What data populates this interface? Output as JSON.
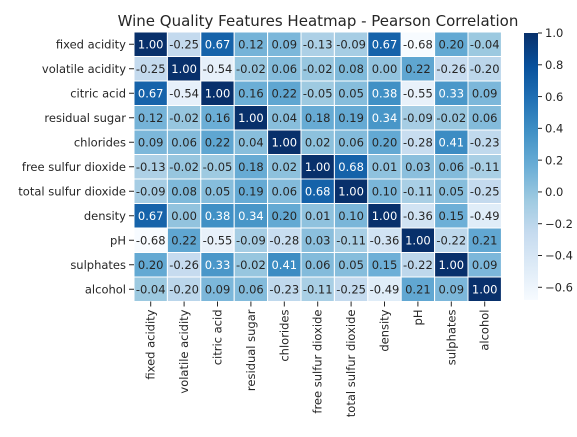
{
  "chart_data": {
    "type": "heatmap",
    "title": "Wine Quality Features Heatmap - Pearson Correlation",
    "rows": [
      "fixed acidity",
      "volatile acidity",
      "citric acid",
      "residual sugar",
      "chlorides",
      "free sulfur dioxide",
      "total sulfur dioxide",
      "density",
      "pH",
      "sulphates",
      "alcohol"
    ],
    "columns": [
      "fixed acidity",
      "volatile acidity",
      "citric acid",
      "residual sugar",
      "chlorides",
      "free sulfur dioxide",
      "total sulfur dioxide",
      "density",
      "pH",
      "sulphates",
      "alcohol"
    ],
    "values": [
      [
        1.0,
        -0.25,
        0.67,
        0.12,
        0.09,
        -0.13,
        -0.09,
        0.67,
        -0.68,
        0.2,
        -0.04
      ],
      [
        -0.25,
        1.0,
        -0.54,
        -0.02,
        0.06,
        -0.02,
        0.08,
        0.0,
        0.22,
        -0.26,
        -0.2
      ],
      [
        0.67,
        -0.54,
        1.0,
        0.16,
        0.22,
        -0.05,
        0.05,
        0.38,
        -0.55,
        0.33,
        0.09
      ],
      [
        0.12,
        -0.02,
        0.16,
        1.0,
        0.04,
        0.18,
        0.19,
        0.34,
        -0.09,
        -0.02,
        0.06
      ],
      [
        0.09,
        0.06,
        0.22,
        0.04,
        1.0,
        0.02,
        0.06,
        0.2,
        -0.28,
        0.41,
        -0.23
      ],
      [
        -0.13,
        -0.02,
        -0.05,
        0.18,
        0.02,
        1.0,
        0.68,
        0.01,
        0.03,
        0.06,
        -0.11
      ],
      [
        -0.09,
        0.08,
        0.05,
        0.19,
        0.06,
        0.68,
        1.0,
        0.1,
        -0.11,
        0.05,
        -0.25
      ],
      [
        0.67,
        0.0,
        0.38,
        0.34,
        0.2,
        0.01,
        0.1,
        1.0,
        -0.36,
        0.15,
        -0.49
      ],
      [
        -0.68,
        0.22,
        -0.55,
        -0.09,
        -0.28,
        0.03,
        -0.11,
        -0.36,
        1.0,
        -0.22,
        0.21
      ],
      [
        0.2,
        -0.26,
        0.33,
        -0.02,
        0.41,
        0.06,
        0.05,
        0.15,
        -0.22,
        1.0,
        0.09
      ],
      [
        -0.04,
        -0.2,
        0.09,
        0.06,
        -0.23,
        -0.11,
        -0.25,
        -0.49,
        0.21,
        0.09,
        1.0
      ]
    ],
    "value_format": "0.00",
    "colorscale": {
      "name": "Blues",
      "low": "#f7fbff",
      "high": "#08306b"
    },
    "vmin": -0.68,
    "vmax": 1.0,
    "colorbar_ticks": [
      "1.0",
      "0.8",
      "0.6",
      "0.4",
      "0.2",
      "0.0",
      "−0.2",
      "−0.4",
      "−0.6"
    ],
    "colorbar_tick_values": [
      1.0,
      0.8,
      0.6,
      0.4,
      0.2,
      0.0,
      -0.2,
      -0.4,
      -0.6
    ],
    "grid": false,
    "legend": "colorbar-right"
  }
}
